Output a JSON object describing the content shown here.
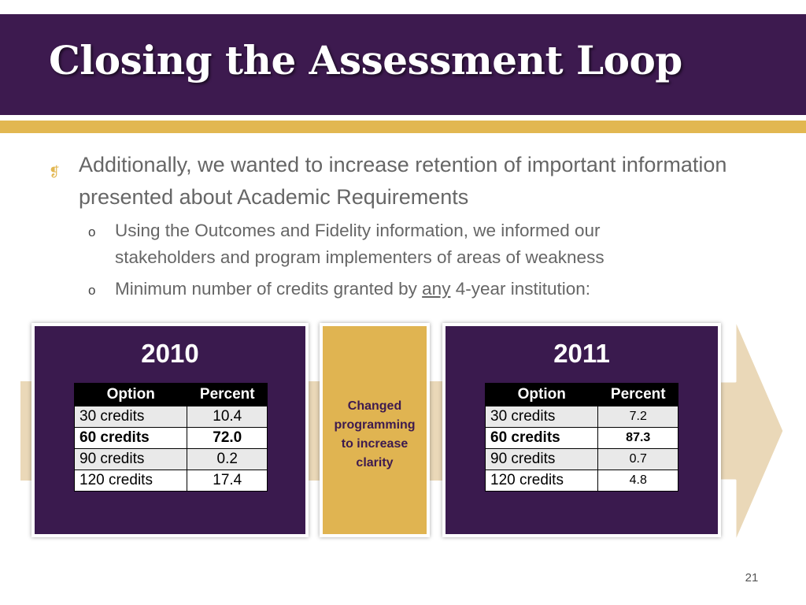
{
  "slide": {
    "title": "Closing the Assessment Loop",
    "page_number": "21",
    "colors": {
      "primary_purple": "#3d1a4f",
      "accent_gold": "#e2b751",
      "arrow_tan": "#ead8b8"
    },
    "bullet_icon": "scroll-icon",
    "bullets": [
      {
        "text": "Additionally, we wanted to increase retention of important information presented about Academic Requirements"
      }
    ],
    "sub_bullets": [
      {
        "marker": "o",
        "text": "Using the Outcomes and Fidelity information, we informed our stakeholders and program implementers of areas of weakness"
      },
      {
        "marker": "o",
        "text_before": "Minimum number of credits granted by ",
        "text_underlined": "any",
        "text_after": " 4-year institution:"
      }
    ]
  },
  "diagram": {
    "left": {
      "year": "2010",
      "headers": [
        "Option",
        "Percent"
      ],
      "rows": [
        {
          "option": "30 credits",
          "percent": "10.4"
        },
        {
          "option": "60 credits",
          "percent": "72.0"
        },
        {
          "option": "90 credits",
          "percent": "0.2"
        },
        {
          "option": "120 credits",
          "percent": "17.4"
        }
      ]
    },
    "middle": {
      "lines": [
        "Changed",
        "programming",
        "to increase",
        "clarity"
      ]
    },
    "right": {
      "year": "2011",
      "headers": [
        "Option",
        "Percent"
      ],
      "rows": [
        {
          "option": "30 credits",
          "percent": "7.2"
        },
        {
          "option": "60 credits",
          "percent": "87.3"
        },
        {
          "option": "90 credits",
          "percent": "0.7"
        },
        {
          "option": "120 credits",
          "percent": "4.8"
        }
      ]
    }
  }
}
